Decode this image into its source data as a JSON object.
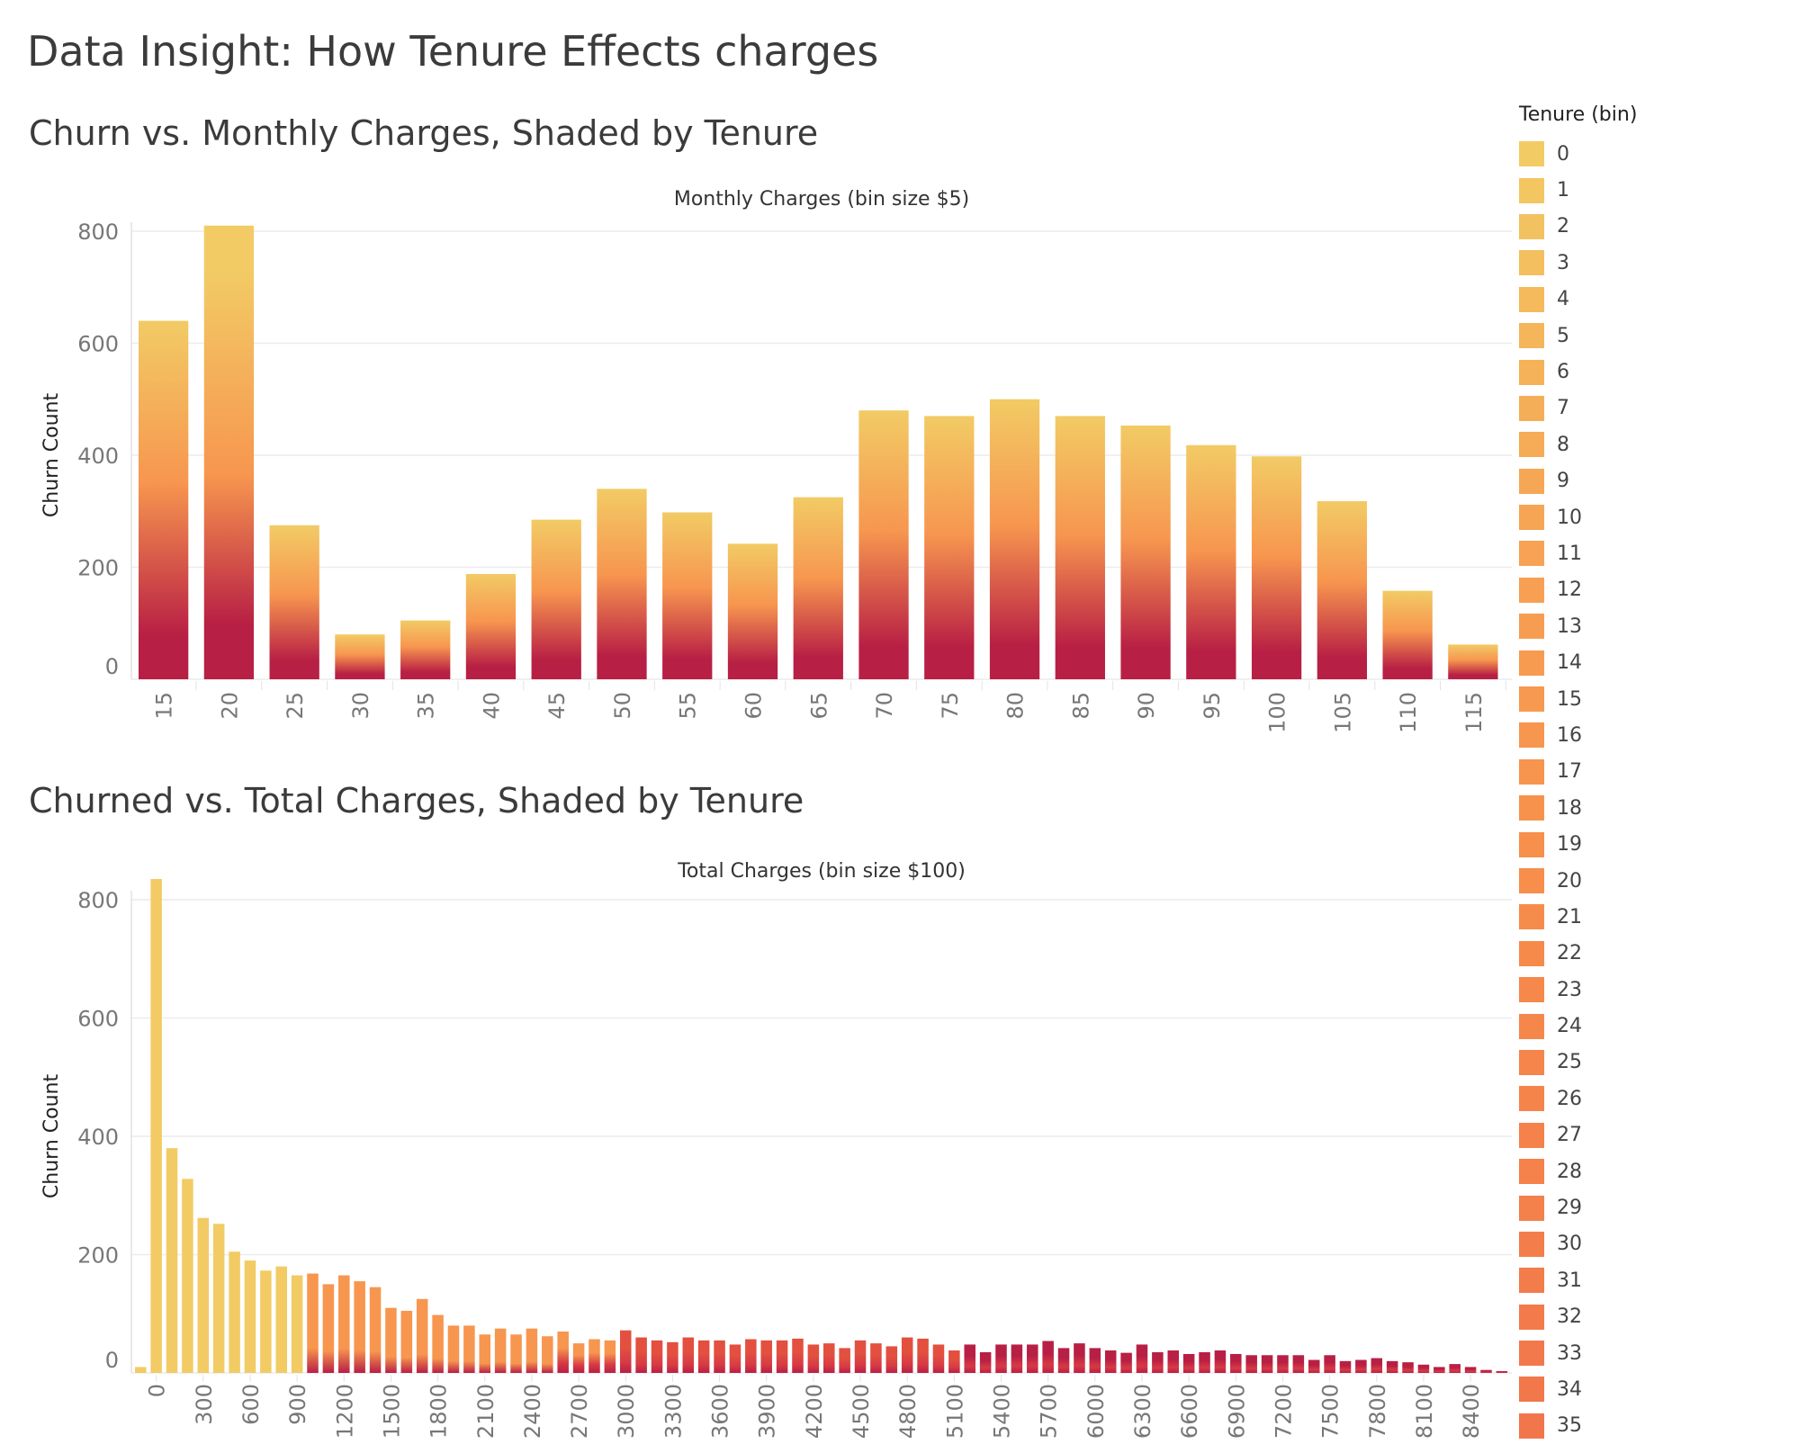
{
  "page": {
    "title": "Data Insight: How Tenure Effects charges"
  },
  "chart_data": [
    {
      "type": "bar",
      "title": "Churn vs. Monthly Charges, Shaded by Tenure",
      "xlabel": "Monthly Charges (bin size $5)",
      "ylabel": "Churn Count",
      "ylim": [
        0,
        800
      ],
      "yticks": [
        0,
        200,
        400,
        600,
        800
      ],
      "categories": [
        "15",
        "20",
        "25",
        "30",
        "35",
        "40",
        "45",
        "50",
        "55",
        "60",
        "65",
        "70",
        "75",
        "80",
        "85",
        "90",
        "95",
        "100",
        "105",
        "110",
        "115"
      ],
      "values": [
        640,
        810,
        275,
        80,
        105,
        188,
        285,
        340,
        298,
        242,
        325,
        480,
        470,
        500,
        470,
        453,
        418,
        398,
        318,
        158,
        62
      ],
      "grid": true,
      "legend": "none"
    },
    {
      "type": "bar",
      "title": "Churned vs. Total Charges, Shaded by Tenure",
      "xlabel": "Total Charges (bin size $100)",
      "ylabel": "Churn Count",
      "ylim": [
        0,
        800
      ],
      "yticks": [
        0,
        200,
        400,
        600,
        800
      ],
      "tick_labels": [
        "0",
        "300",
        "600",
        "900",
        "1200",
        "1500",
        "1800",
        "2100",
        "2400",
        "2700",
        "3000",
        "3300",
        "3600",
        "3900",
        "4200",
        "4500",
        "4800",
        "5100",
        "5400",
        "5700",
        "6000",
        "6300",
        "6600",
        "6900",
        "7200",
        "7500",
        "7800",
        "8100",
        "8400"
      ],
      "x_start": -100,
      "bin_size": 100,
      "values": [
        10,
        835,
        380,
        328,
        262,
        252,
        205,
        190,
        173,
        180,
        165,
        168,
        150,
        165,
        155,
        145,
        110,
        105,
        125,
        98,
        80,
        80,
        65,
        75,
        65,
        75,
        62,
        70,
        50,
        57,
        55,
        72,
        60,
        55,
        52,
        60,
        55,
        55,
        48,
        57,
        55,
        55,
        58,
        48,
        50,
        42,
        55,
        50,
        45,
        60,
        58,
        48,
        38,
        48,
        35,
        48,
        48,
        48,
        54,
        42,
        50,
        42,
        38,
        34,
        48,
        35,
        38,
        32,
        35,
        38,
        32,
        30,
        30,
        30,
        30,
        22,
        30,
        20,
        22,
        25,
        20,
        18,
        14,
        10,
        15,
        10,
        5,
        3
      ]
    }
  ],
  "legend": {
    "title": "Tenure (bin)",
    "items": [
      "0",
      "1",
      "2",
      "3",
      "4",
      "5",
      "6",
      "7",
      "8",
      "9",
      "10",
      "11",
      "12",
      "13",
      "14",
      "15",
      "16",
      "17",
      "18",
      "19",
      "20",
      "21",
      "22",
      "23",
      "24",
      "25",
      "26",
      "27",
      "28",
      "29",
      "30",
      "31",
      "32",
      "33",
      "34",
      "35"
    ],
    "colors": [
      "#f2cb65",
      "#f3c662",
      "#f3c260",
      "#f4bf5e",
      "#f4ba5c",
      "#f5b55a",
      "#f5b259",
      "#f5ae58",
      "#f6ab57",
      "#f6a756",
      "#f6a555",
      "#f7a254",
      "#f7a053",
      "#f79d52",
      "#f79b51",
      "#f79950",
      "#f7964f",
      "#f7944e",
      "#f7924d",
      "#f7904c",
      "#f78e4c",
      "#f68c4b",
      "#f68a4b",
      "#f6884b",
      "#f6874b",
      "#f6854b",
      "#f5844b",
      "#f5824b",
      "#f5814b",
      "#f4804b",
      "#f47e4b",
      "#f37c4b",
      "#f37b4b",
      "#f2794b",
      "#f2774b",
      "#f1764b"
    ]
  },
  "colors": {
    "gradient_top": "#f2cb65",
    "gradient_mid": "#f7964f",
    "gradient_bottom": "#b81f44",
    "grid": "#ececec",
    "axis_text": "#777777"
  }
}
